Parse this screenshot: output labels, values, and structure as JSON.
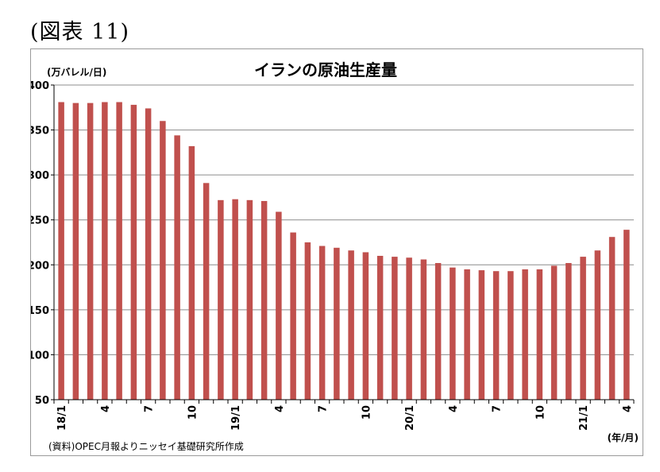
{
  "figure_label": "(図表 11)",
  "source_note": "(資料)OPEC月報よりニッセイ基礎研究所作成",
  "colors": {
    "bar": "#c0504d",
    "grid": "#8c8c8c",
    "axis": "#000000"
  },
  "chart_data": {
    "type": "bar",
    "title": "イランの原油生産量",
    "ylabel": "(万バレル/日)",
    "xlabel": "(年/月)",
    "ylim": [
      50,
      400
    ],
    "yticks": [
      50,
      100,
      150,
      200,
      250,
      300,
      350,
      400
    ],
    "grid": true,
    "categories": [
      "18/1",
      "2",
      "3",
      "4",
      "5",
      "6",
      "7",
      "8",
      "9",
      "10",
      "11",
      "12",
      "19/1",
      "2",
      "3",
      "4",
      "5",
      "6",
      "7",
      "8",
      "9",
      "10",
      "11",
      "12",
      "20/1",
      "2",
      "3",
      "4",
      "5",
      "6",
      "7",
      "8",
      "9",
      "10",
      "11",
      "12",
      "21/1",
      "2",
      "3",
      "4"
    ],
    "tick_labels": [
      "18/1",
      "",
      "",
      "4",
      "",
      "",
      "7",
      "",
      "",
      "10",
      "",
      "",
      "19/1",
      "",
      "",
      "4",
      "",
      "",
      "7",
      "",
      "",
      "10",
      "",
      "",
      "20/1",
      "",
      "",
      "4",
      "",
      "",
      "7",
      "",
      "",
      "10",
      "",
      "",
      "21/1",
      "",
      "",
      "4"
    ],
    "series": [
      {
        "values": [
          381,
          380,
          380,
          381,
          381,
          378,
          374,
          360,
          344,
          332,
          291,
          272,
          273,
          272,
          271,
          259,
          236,
          225,
          221,
          219,
          216,
          214,
          210,
          209,
          208,
          206,
          202,
          197,
          195,
          194,
          193,
          193,
          195,
          195,
          199,
          202,
          209,
          216,
          231,
          239
        ]
      }
    ]
  }
}
